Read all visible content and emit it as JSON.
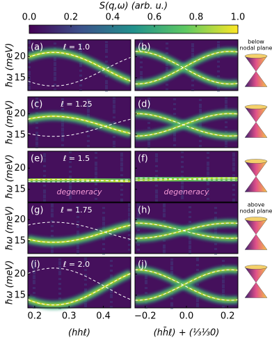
{
  "colorbar": {
    "title": "S(q,ω) (arb. u.)",
    "lim": [
      0,
      1
    ],
    "ticks": [
      {
        "value": 0,
        "label": "0.0"
      },
      0.2,
      0.4,
      0.6,
      0.8,
      {
        "value": 1,
        "label": "1.0"
      }
    ]
  },
  "y_axis": {
    "label": "ħω (meV)",
    "lim": [
      12,
      24
    ],
    "ticks": [
      15,
      20
    ]
  },
  "x_axes": [
    {
      "label": "(hhℓ)",
      "lim": [
        0.18,
        0.48
      ],
      "ticks": [
        0.2,
        0.3,
        0.4
      ]
    },
    {
      "label": "(hh̄ℓ) + (⅓⅓0)",
      "lim": [
        -0.25,
        0.25
      ],
      "ticks": [
        {
          "value": -0.2,
          "label": "−0.2"
        },
        {
          "value": 0,
          "label": "0.0"
        },
        0.2
      ]
    }
  ],
  "rows": [
    {
      "l_label": "ℓ = 1.0",
      "panels": [
        "(a)",
        "(b)"
      ],
      "side_note": [
        "below",
        "nodal plane"
      ]
    },
    {
      "l_label": "ℓ = 1.25",
      "panels": [
        "(c)",
        "(d)"
      ]
    },
    {
      "l_label": "ℓ = 1.5",
      "panels": [
        "(e)",
        "(f)"
      ],
      "annotations": [
        "degeneracy",
        "degeneracy"
      ]
    },
    {
      "l_label": "ℓ = 1.75",
      "panels": [
        "(g)",
        "(h)"
      ],
      "side_note": [
        "above",
        "nodal plane"
      ]
    },
    {
      "l_label": "ℓ = 2.0",
      "panels": [
        "(i)",
        "(j)"
      ]
    }
  ]
}
